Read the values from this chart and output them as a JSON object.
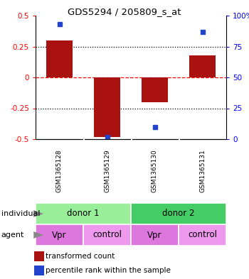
{
  "title": "GDS5294 / 205809_s_at",
  "samples": [
    "GSM1365128",
    "GSM1365129",
    "GSM1365130",
    "GSM1365131"
  ],
  "bar_values": [
    0.3,
    -0.48,
    -0.2,
    0.18
  ],
  "dot_percentiles": [
    0.93,
    0.02,
    0.1,
    0.87
  ],
  "bar_color": "#aa1111",
  "dot_color": "#2244cc",
  "ylim": [
    -0.5,
    0.5
  ],
  "yticks": [
    -0.5,
    -0.25,
    0,
    0.25,
    0.5
  ],
  "y2ticks_vals": [
    0,
    25,
    50,
    75,
    100
  ],
  "y2ticks_labels": [
    "0",
    "25",
    "50",
    "75",
    "100%"
  ],
  "individual_labels": [
    "donor 1",
    "donor 2"
  ],
  "individual_colors": [
    "#99ee99",
    "#44cc66"
  ],
  "agent_labels": [
    "Vpr",
    "control",
    "Vpr",
    "control"
  ],
  "agent_colors": [
    "#dd77dd",
    "#ee99ee",
    "#dd77dd",
    "#ee99ee"
  ],
  "sample_bg": "#cccccc",
  "legend_bar_label": "transformed count",
  "legend_dot_label": "percentile rank within the sample",
  "background_color": "#ffffff",
  "bar_width": 0.55
}
